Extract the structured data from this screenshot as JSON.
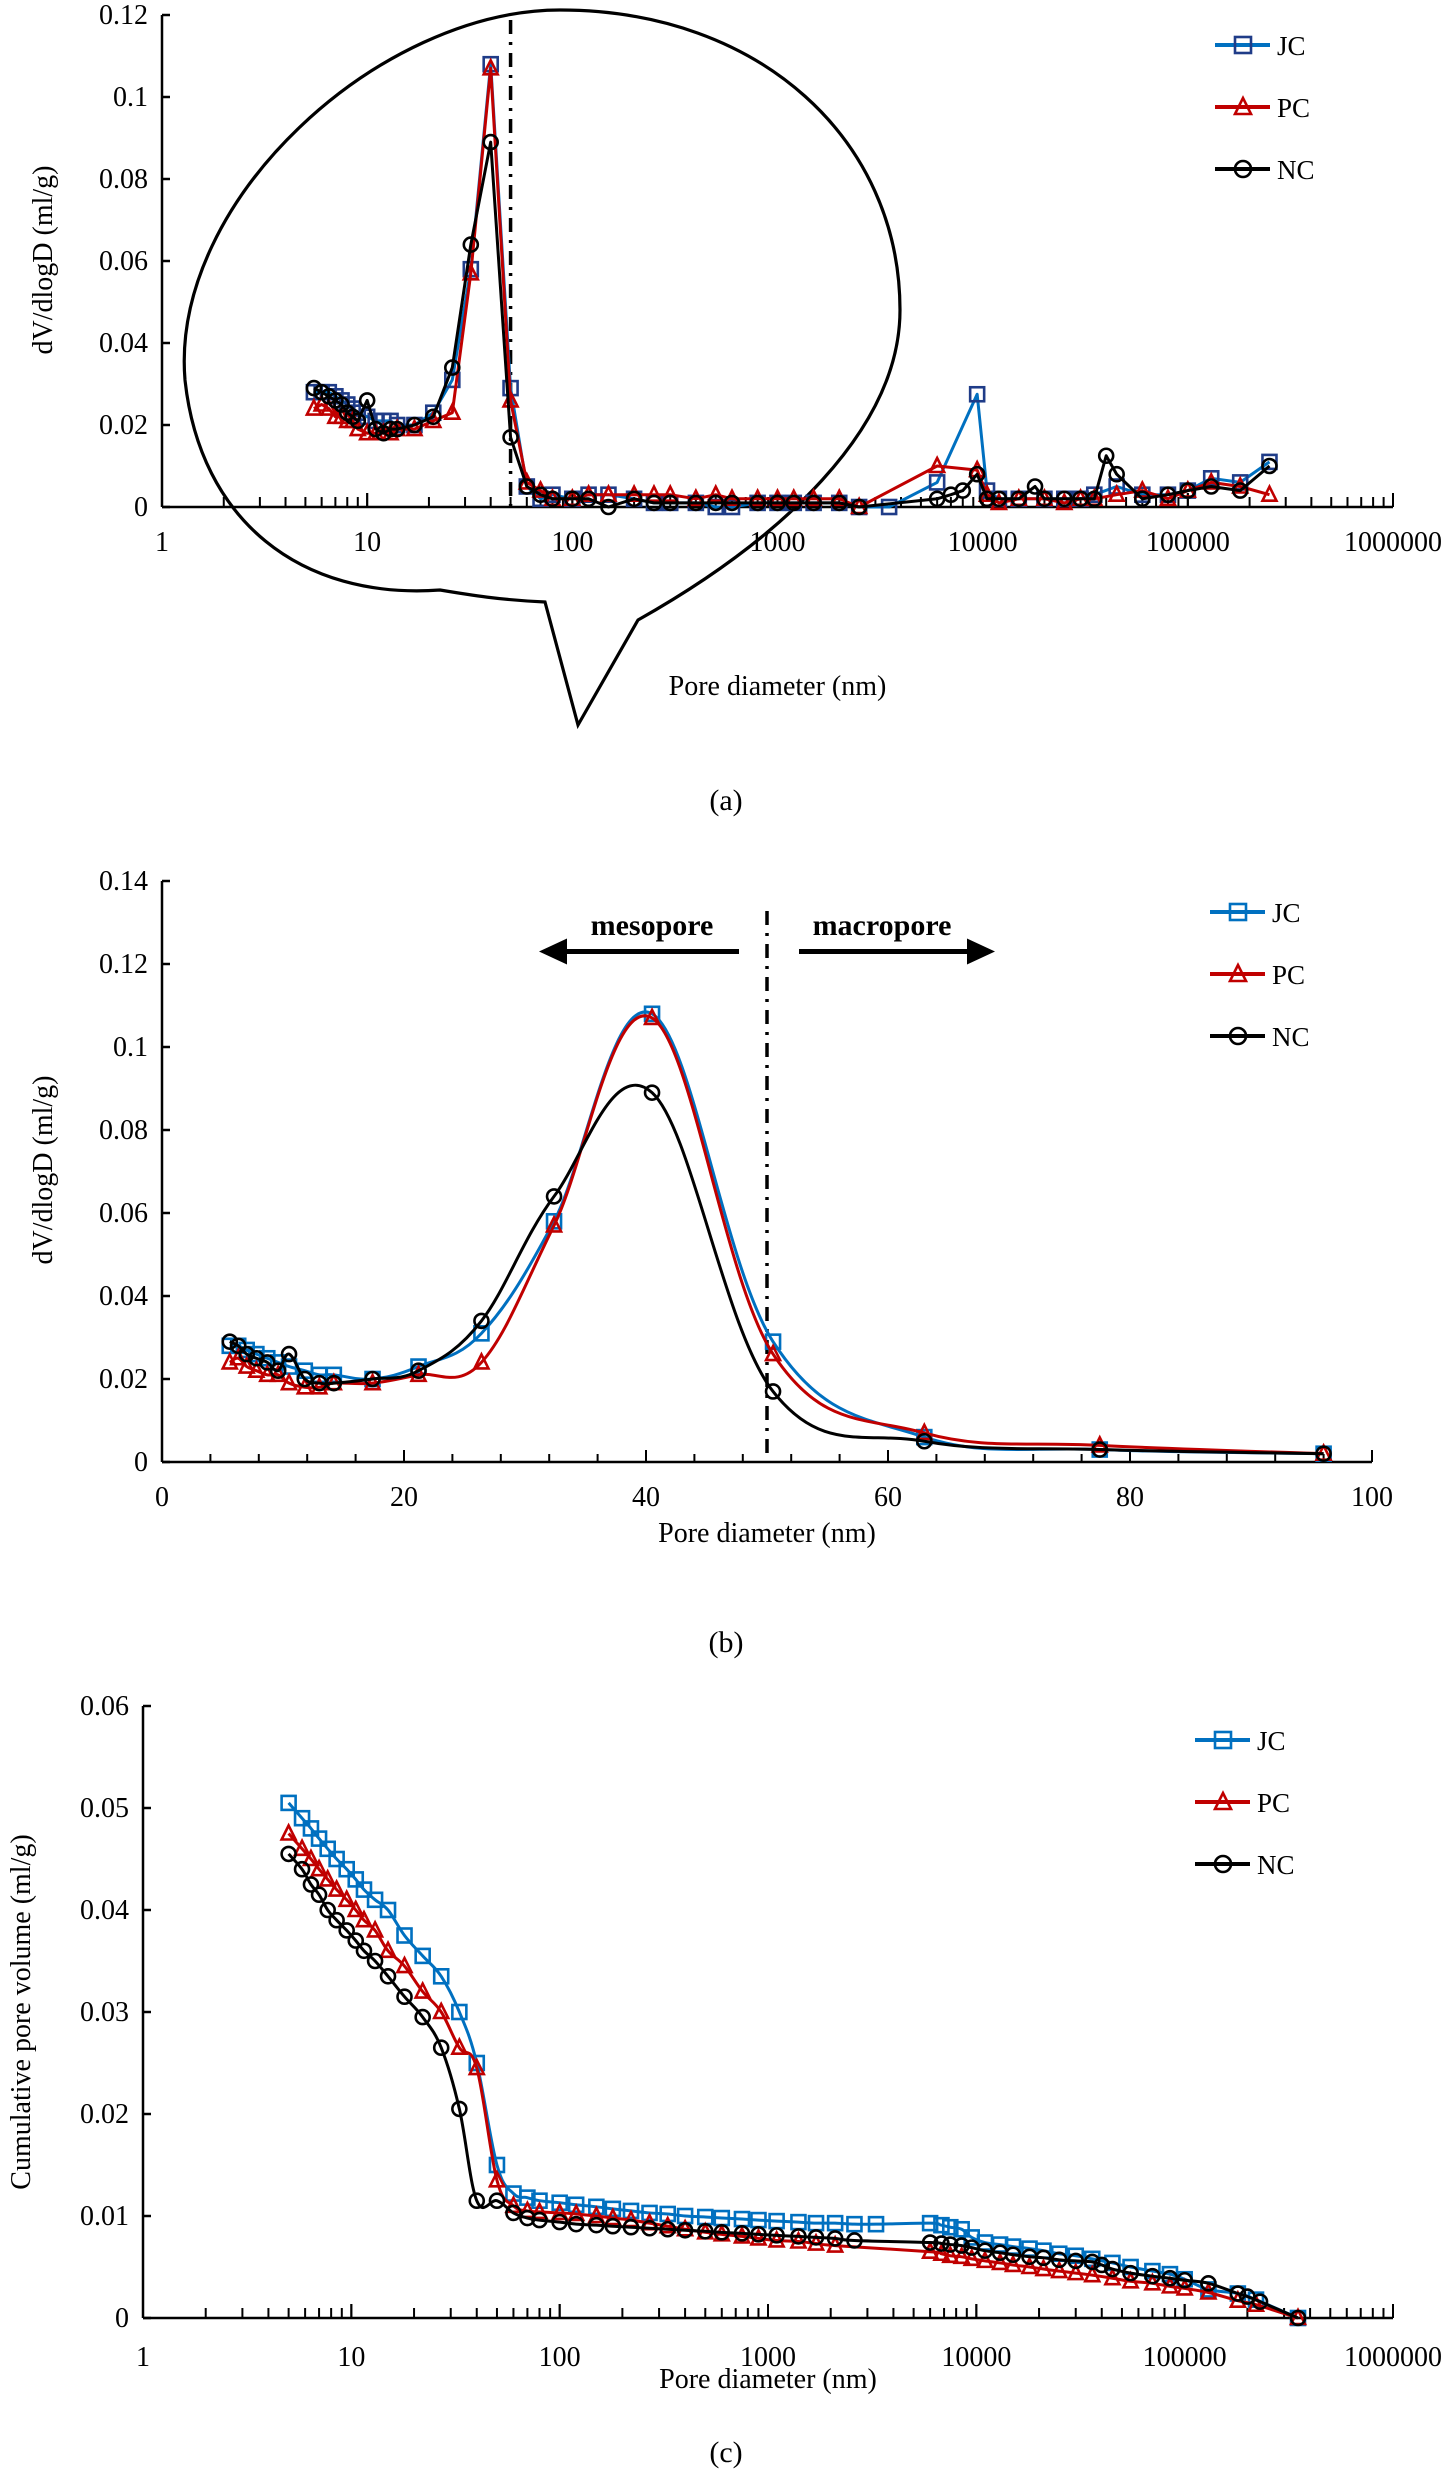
{
  "colors": {
    "JC": "#0070C0",
    "JC_marker": "#1F3C88",
    "PC": "#C00000",
    "NC": "#000000"
  },
  "chart_data": [
    {
      "id": "a",
      "type": "line",
      "panel_label": "(a)",
      "xlabel": "Pore diameter (nm)",
      "ylabel": "dV/dlogD (ml/g)",
      "xscale": "log",
      "xlim": [
        1,
        1000000
      ],
      "ylim": [
        0,
        0.12
      ],
      "xticks": [
        "1",
        "10",
        "100",
        "1000",
        "10000",
        "100000",
        "1000000"
      ],
      "yticks": [
        "0",
        "0.02",
        "0.04",
        "0.06",
        "0.08",
        "0.1",
        "0.12"
      ],
      "legend": "top-right",
      "annotations": {
        "vertical_line_x": 50,
        "vertical_line_style": "dash-dot",
        "callout": "ellipse highlighting 5-60 nm region"
      },
      "series": [
        {
          "name": "JC",
          "marker": "square",
          "x": [
            5.5,
            6,
            6.5,
            7,
            7.5,
            8,
            8.5,
            9,
            10,
            11,
            12,
            13,
            14,
            17,
            21,
            26,
            32,
            40,
            50,
            60,
            70,
            80,
            100,
            120,
            150,
            200,
            250,
            300,
            400,
            500,
            600,
            800,
            1000,
            1200,
            1500,
            2000,
            2500,
            3500,
            6000,
            9400,
            10500,
            12000,
            15000,
            20000,
            25000,
            30000,
            35000,
            45000,
            60000,
            80000,
            100000,
            130000,
            180000,
            250000
          ],
          "y": [
            0.028,
            0.028,
            0.028,
            0.027,
            0.026,
            0.025,
            0.024,
            0.023,
            0.022,
            0.021,
            0.021,
            0.021,
            0.02,
            0.02,
            0.023,
            0.031,
            0.058,
            0.108,
            0.029,
            0.005,
            0.002,
            0.003,
            0.002,
            0.003,
            0.003,
            0.002,
            0.001,
            0.001,
            0.001,
            0.0,
            0.0,
            0.001,
            0.001,
            0.001,
            0.001,
            0.001,
            0.0,
            0.0,
            0.006,
            0.0275,
            0.004,
            0.002,
            0.002,
            0.002,
            0.002,
            0.002,
            0.003,
            0.005,
            0.003,
            0.003,
            0.004,
            0.007,
            0.006,
            0.011
          ]
        },
        {
          "name": "PC",
          "marker": "triangle",
          "x": [
            5.5,
            6,
            6.5,
            7,
            7.5,
            8,
            8.5,
            9,
            10,
            11,
            12,
            13,
            14,
            17,
            21,
            26,
            32,
            40,
            50,
            60,
            70,
            80,
            100,
            120,
            150,
            200,
            250,
            300,
            400,
            500,
            600,
            800,
            1000,
            1200,
            1500,
            2000,
            2500,
            6000,
            9400,
            10500,
            12000,
            15000,
            20000,
            25000,
            30000,
            35000,
            45000,
            60000,
            80000,
            100000,
            130000,
            180000,
            250000
          ],
          "y": [
            0.024,
            0.025,
            0.024,
            0.022,
            0.022,
            0.021,
            0.021,
            0.019,
            0.018,
            0.018,
            0.018,
            0.018,
            0.019,
            0.019,
            0.021,
            0.023,
            0.057,
            0.107,
            0.026,
            0.006,
            0.004,
            0.002,
            0.002,
            0.003,
            0.003,
            0.003,
            0.003,
            0.003,
            0.002,
            0.003,
            0.002,
            0.002,
            0.002,
            0.002,
            0.002,
            0.002,
            0.0,
            0.01,
            0.009,
            0.003,
            0.001,
            0.002,
            0.002,
            0.001,
            0.002,
            0.002,
            0.003,
            0.004,
            0.002,
            0.004,
            0.006,
            0.005,
            0.003
          ]
        },
        {
          "name": "NC",
          "marker": "circle",
          "x": [
            5.5,
            6,
            6.5,
            7,
            7.5,
            8,
            8.5,
            9,
            10,
            11,
            12,
            13,
            14,
            17,
            21,
            26,
            32,
            40,
            50,
            60,
            70,
            80,
            100,
            120,
            150,
            200,
            250,
            300,
            400,
            500,
            600,
            800,
            1000,
            1200,
            1500,
            2000,
            2500,
            6000,
            7000,
            8000,
            9400,
            10500,
            12000,
            15000,
            18000,
            20000,
            25000,
            30000,
            35000,
            40000,
            45000,
            60000,
            80000,
            100000,
            130000,
            180000,
            250000
          ],
          "y": [
            0.029,
            0.028,
            0.027,
            0.026,
            0.025,
            0.023,
            0.022,
            0.021,
            0.026,
            0.019,
            0.018,
            0.019,
            0.019,
            0.02,
            0.022,
            0.034,
            0.064,
            0.089,
            0.017,
            0.005,
            0.003,
            0.002,
            0.002,
            0.002,
            0.0,
            0.002,
            0.001,
            0.001,
            0.001,
            0.001,
            0.001,
            0.001,
            0.001,
            0.001,
            0.001,
            0.001,
            0.0,
            0.002,
            0.003,
            0.004,
            0.008,
            0.002,
            0.002,
            0.002,
            0.005,
            0.002,
            0.002,
            0.002,
            0.002,
            0.0125,
            0.008,
            0.002,
            0.003,
            0.004,
            0.005,
            0.004,
            0.01
          ]
        }
      ]
    },
    {
      "id": "b",
      "type": "line",
      "panel_label": "(b)",
      "xlabel": "Pore diameter (nm)",
      "ylabel": "dV/dlogD (ml/g)",
      "xscale": "linear",
      "xlim": [
        0,
        100
      ],
      "ylim": [
        0,
        0.14
      ],
      "xticks": [
        "0",
        "20",
        "40",
        "60",
        "80",
        "100"
      ],
      "yticks": [
        "0",
        "0.02",
        "0.04",
        "0.06",
        "0.08",
        "0.1",
        "0.12",
        "0.14"
      ],
      "legend": "top-right",
      "annotations": {
        "vertical_line_x": 50,
        "vertical_line_style": "dash-dot",
        "left_arrow_text": "mesopore",
        "right_arrow_text": "macropore"
      },
      "series": [
        {
          "name": "JC",
          "marker": "square",
          "x": [
            5.6,
            6.3,
            7,
            7.8,
            8.7,
            9.6,
            10.5,
            11.8,
            13,
            14.2,
            17.4,
            21.2,
            26.4,
            32.4,
            40.5,
            50.5,
            63,
            77.5,
            96
          ],
          "y": [
            0.028,
            0.028,
            0.027,
            0.026,
            0.025,
            0.024,
            0.023,
            0.022,
            0.021,
            0.021,
            0.02,
            0.023,
            0.031,
            0.058,
            0.108,
            0.029,
            0.006,
            0.003,
            0.002
          ]
        },
        {
          "name": "PC",
          "marker": "triangle",
          "x": [
            5.6,
            6.3,
            7,
            7.8,
            8.7,
            9.6,
            10.5,
            11.8,
            13,
            14.2,
            17.4,
            21.2,
            26.4,
            32.4,
            40.5,
            50.5,
            63,
            77.5,
            96
          ],
          "y": [
            0.024,
            0.025,
            0.023,
            0.022,
            0.021,
            0.021,
            0.019,
            0.018,
            0.018,
            0.019,
            0.019,
            0.021,
            0.024,
            0.057,
            0.107,
            0.026,
            0.007,
            0.004,
            0.002
          ]
        },
        {
          "name": "NC",
          "marker": "circle",
          "x": [
            5.6,
            6.3,
            7,
            7.8,
            8.7,
            9.6,
            10.5,
            11.8,
            13,
            14.2,
            17.4,
            21.2,
            26.4,
            32.4,
            40.5,
            50.5,
            63,
            77.5,
            96
          ],
          "y": [
            0.029,
            0.028,
            0.026,
            0.025,
            0.024,
            0.022,
            0.026,
            0.02,
            0.019,
            0.019,
            0.02,
            0.022,
            0.034,
            0.064,
            0.089,
            0.017,
            0.005,
            0.003,
            0.002
          ]
        }
      ]
    },
    {
      "id": "c",
      "type": "line",
      "panel_label": "(c)",
      "xlabel": "Pore diameter (nm)",
      "ylabel": "Cumulative pore volume (ml/g)",
      "xscale": "log",
      "xlim": [
        1,
        1000000
      ],
      "ylim": [
        0,
        0.06
      ],
      "xticks": [
        "1",
        "10",
        "100",
        "1000",
        "10000",
        "100000",
        "1000000"
      ],
      "yticks": [
        "0",
        "0.01",
        "0.02",
        "0.03",
        "0.04",
        "0.05",
        "0.06"
      ],
      "legend": "top-right",
      "series": [
        {
          "name": "JC",
          "marker": "square",
          "x": [
            5,
            5.8,
            6.4,
            7,
            7.7,
            8.5,
            9.5,
            10.5,
            11.5,
            13,
            15,
            18,
            22,
            27,
            33,
            40,
            50,
            60,
            70,
            80,
            100,
            120,
            150,
            180,
            220,
            270,
            330,
            400,
            500,
            600,
            750,
            900,
            1100,
            1400,
            1700,
            2100,
            2600,
            3300,
            6000,
            6800,
            7500,
            8500,
            9500,
            11000,
            13000,
            15000,
            18000,
            21000,
            25000,
            30000,
            36000,
            45000,
            55000,
            70000,
            85000,
            100000,
            130000,
            180000,
            220000,
            350000
          ],
          "y": [
            0.0505,
            0.049,
            0.048,
            0.047,
            0.046,
            0.045,
            0.044,
            0.043,
            0.042,
            0.041,
            0.04,
            0.0375,
            0.0355,
            0.0335,
            0.03,
            0.025,
            0.015,
            0.0122,
            0.0118,
            0.0115,
            0.0113,
            0.0111,
            0.0109,
            0.0107,
            0.0105,
            0.0103,
            0.0102,
            0.01,
            0.0099,
            0.0098,
            0.0097,
            0.0096,
            0.0095,
            0.0094,
            0.0093,
            0.0093,
            0.0092,
            0.0092,
            0.0093,
            0.0091,
            0.0089,
            0.0087,
            0.0079,
            0.0074,
            0.0072,
            0.007,
            0.0068,
            0.0066,
            0.0063,
            0.0061,
            0.0058,
            0.0054,
            0.005,
            0.0046,
            0.0043,
            0.0038,
            0.0028,
            0.0024,
            0.0018,
            0.0
          ]
        },
        {
          "name": "PC",
          "marker": "triangle",
          "x": [
            5,
            5.8,
            6.4,
            7,
            7.7,
            8.5,
            9.5,
            10.5,
            11.5,
            13,
            15,
            18,
            22,
            27,
            33,
            40,
            50,
            60,
            70,
            80,
            100,
            120,
            150,
            180,
            220,
            270,
            330,
            400,
            500,
            600,
            750,
            900,
            1100,
            1400,
            1700,
            2100,
            6000,
            6800,
            7500,
            8500,
            9500,
            11000,
            13000,
            15000,
            18000,
            21000,
            25000,
            30000,
            36000,
            45000,
            55000,
            70000,
            85000,
            100000,
            130000,
            180000,
            220000,
            350000
          ],
          "y": [
            0.0475,
            0.046,
            0.045,
            0.044,
            0.043,
            0.042,
            0.041,
            0.04,
            0.039,
            0.038,
            0.036,
            0.0345,
            0.032,
            0.03,
            0.0265,
            0.0245,
            0.0135,
            0.011,
            0.0105,
            0.0104,
            0.0103,
            0.0102,
            0.01,
            0.0098,
            0.0096,
            0.0093,
            0.009,
            0.0087,
            0.0084,
            0.0082,
            0.008,
            0.0078,
            0.0076,
            0.0075,
            0.0073,
            0.0071,
            0.0065,
            0.0063,
            0.0061,
            0.006,
            0.0058,
            0.0056,
            0.0054,
            0.0052,
            0.005,
            0.0048,
            0.0046,
            0.0044,
            0.0042,
            0.0039,
            0.0036,
            0.0034,
            0.0031,
            0.0029,
            0.0025,
            0.0017,
            0.0013,
            0.0
          ]
        },
        {
          "name": "NC",
          "marker": "circle",
          "x": [
            5,
            5.8,
            6.4,
            7,
            7.7,
            8.5,
            9.5,
            10.5,
            11.5,
            13,
            15,
            18,
            22,
            27,
            33,
            40,
            50,
            60,
            70,
            80,
            100,
            120,
            150,
            180,
            220,
            270,
            330,
            400,
            500,
            600,
            750,
            900,
            1100,
            1400,
            1700,
            2100,
            2600,
            6000,
            6800,
            7500,
            8500,
            9500,
            11000,
            13000,
            15000,
            18000,
            21000,
            25000,
            30000,
            36000,
            40000,
            45000,
            55000,
            70000,
            85000,
            100000,
            130000,
            180000,
            200000,
            230000,
            350000
          ],
          "y": [
            0.0455,
            0.044,
            0.0425,
            0.0415,
            0.04,
            0.039,
            0.038,
            0.037,
            0.036,
            0.035,
            0.0335,
            0.0315,
            0.0295,
            0.0265,
            0.0205,
            0.0115,
            0.0115,
            0.0103,
            0.0098,
            0.0096,
            0.0094,
            0.0092,
            0.0091,
            0.009,
            0.0089,
            0.0088,
            0.0087,
            0.0086,
            0.0085,
            0.0084,
            0.0083,
            0.0082,
            0.0081,
            0.008,
            0.0079,
            0.0078,
            0.0076,
            0.0074,
            0.0073,
            0.0072,
            0.0071,
            0.0069,
            0.0066,
            0.0064,
            0.0062,
            0.006,
            0.0059,
            0.0057,
            0.0056,
            0.0055,
            0.0052,
            0.0048,
            0.0044,
            0.0041,
            0.0039,
            0.0037,
            0.0034,
            0.0024,
            0.0021,
            0.0016,
            0.0
          ]
        }
      ]
    }
  ]
}
